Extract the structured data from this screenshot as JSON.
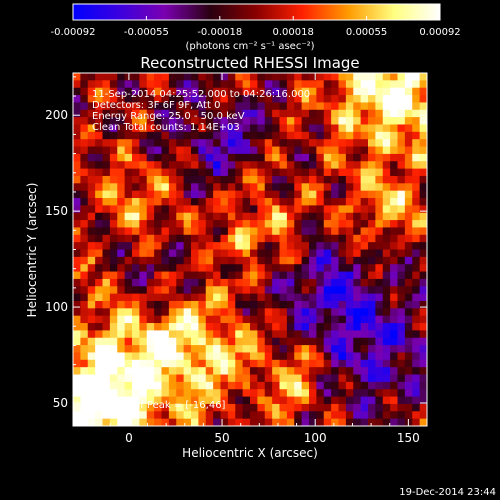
{
  "colorbar": {
    "ticks": [
      "-0.00092",
      "-0.00055",
      "-0.00018",
      "0.00018",
      "0.00055",
      "0.00092"
    ],
    "units_label": "(photons cm⁻² s⁻¹ asec⁻²)",
    "stops": [
      "#0000ff",
      "#3a00e0",
      "#7a00b0",
      "#2a0010",
      "#8a0000",
      "#ff2000",
      "#ff9a00",
      "#ffff80",
      "#ffffff"
    ]
  },
  "chart_data": {
    "type": "heatmap",
    "title": "Reconstructed RHESSI Image",
    "xlabel": "Heliocentric X (arcsec)",
    "ylabel": "Heliocentric Y (arcsec)",
    "xlim": [
      -30,
      160
    ],
    "ylim": [
      38,
      222
    ],
    "xticks": [
      0,
      50,
      100,
      150
    ],
    "yticks": [
      50,
      100,
      150,
      200
    ],
    "value_range": [
      -0.00092,
      0.00092
    ],
    "peak": [
      -16,
      46
    ],
    "info_lines": [
      "11-Sep-2014 04:25:52.000 to 04:26:16.000",
      "Detectors: 3F 6F 9F, Att 0",
      "Energy Range: 25.0 - 50.0 keV",
      "Clean     Total counts: 1.14E+03"
    ],
    "peak_label": "Position of Peak = [-16,46]"
  },
  "footer": {
    "timestamp": "19-Dec-2014 23:44"
  }
}
